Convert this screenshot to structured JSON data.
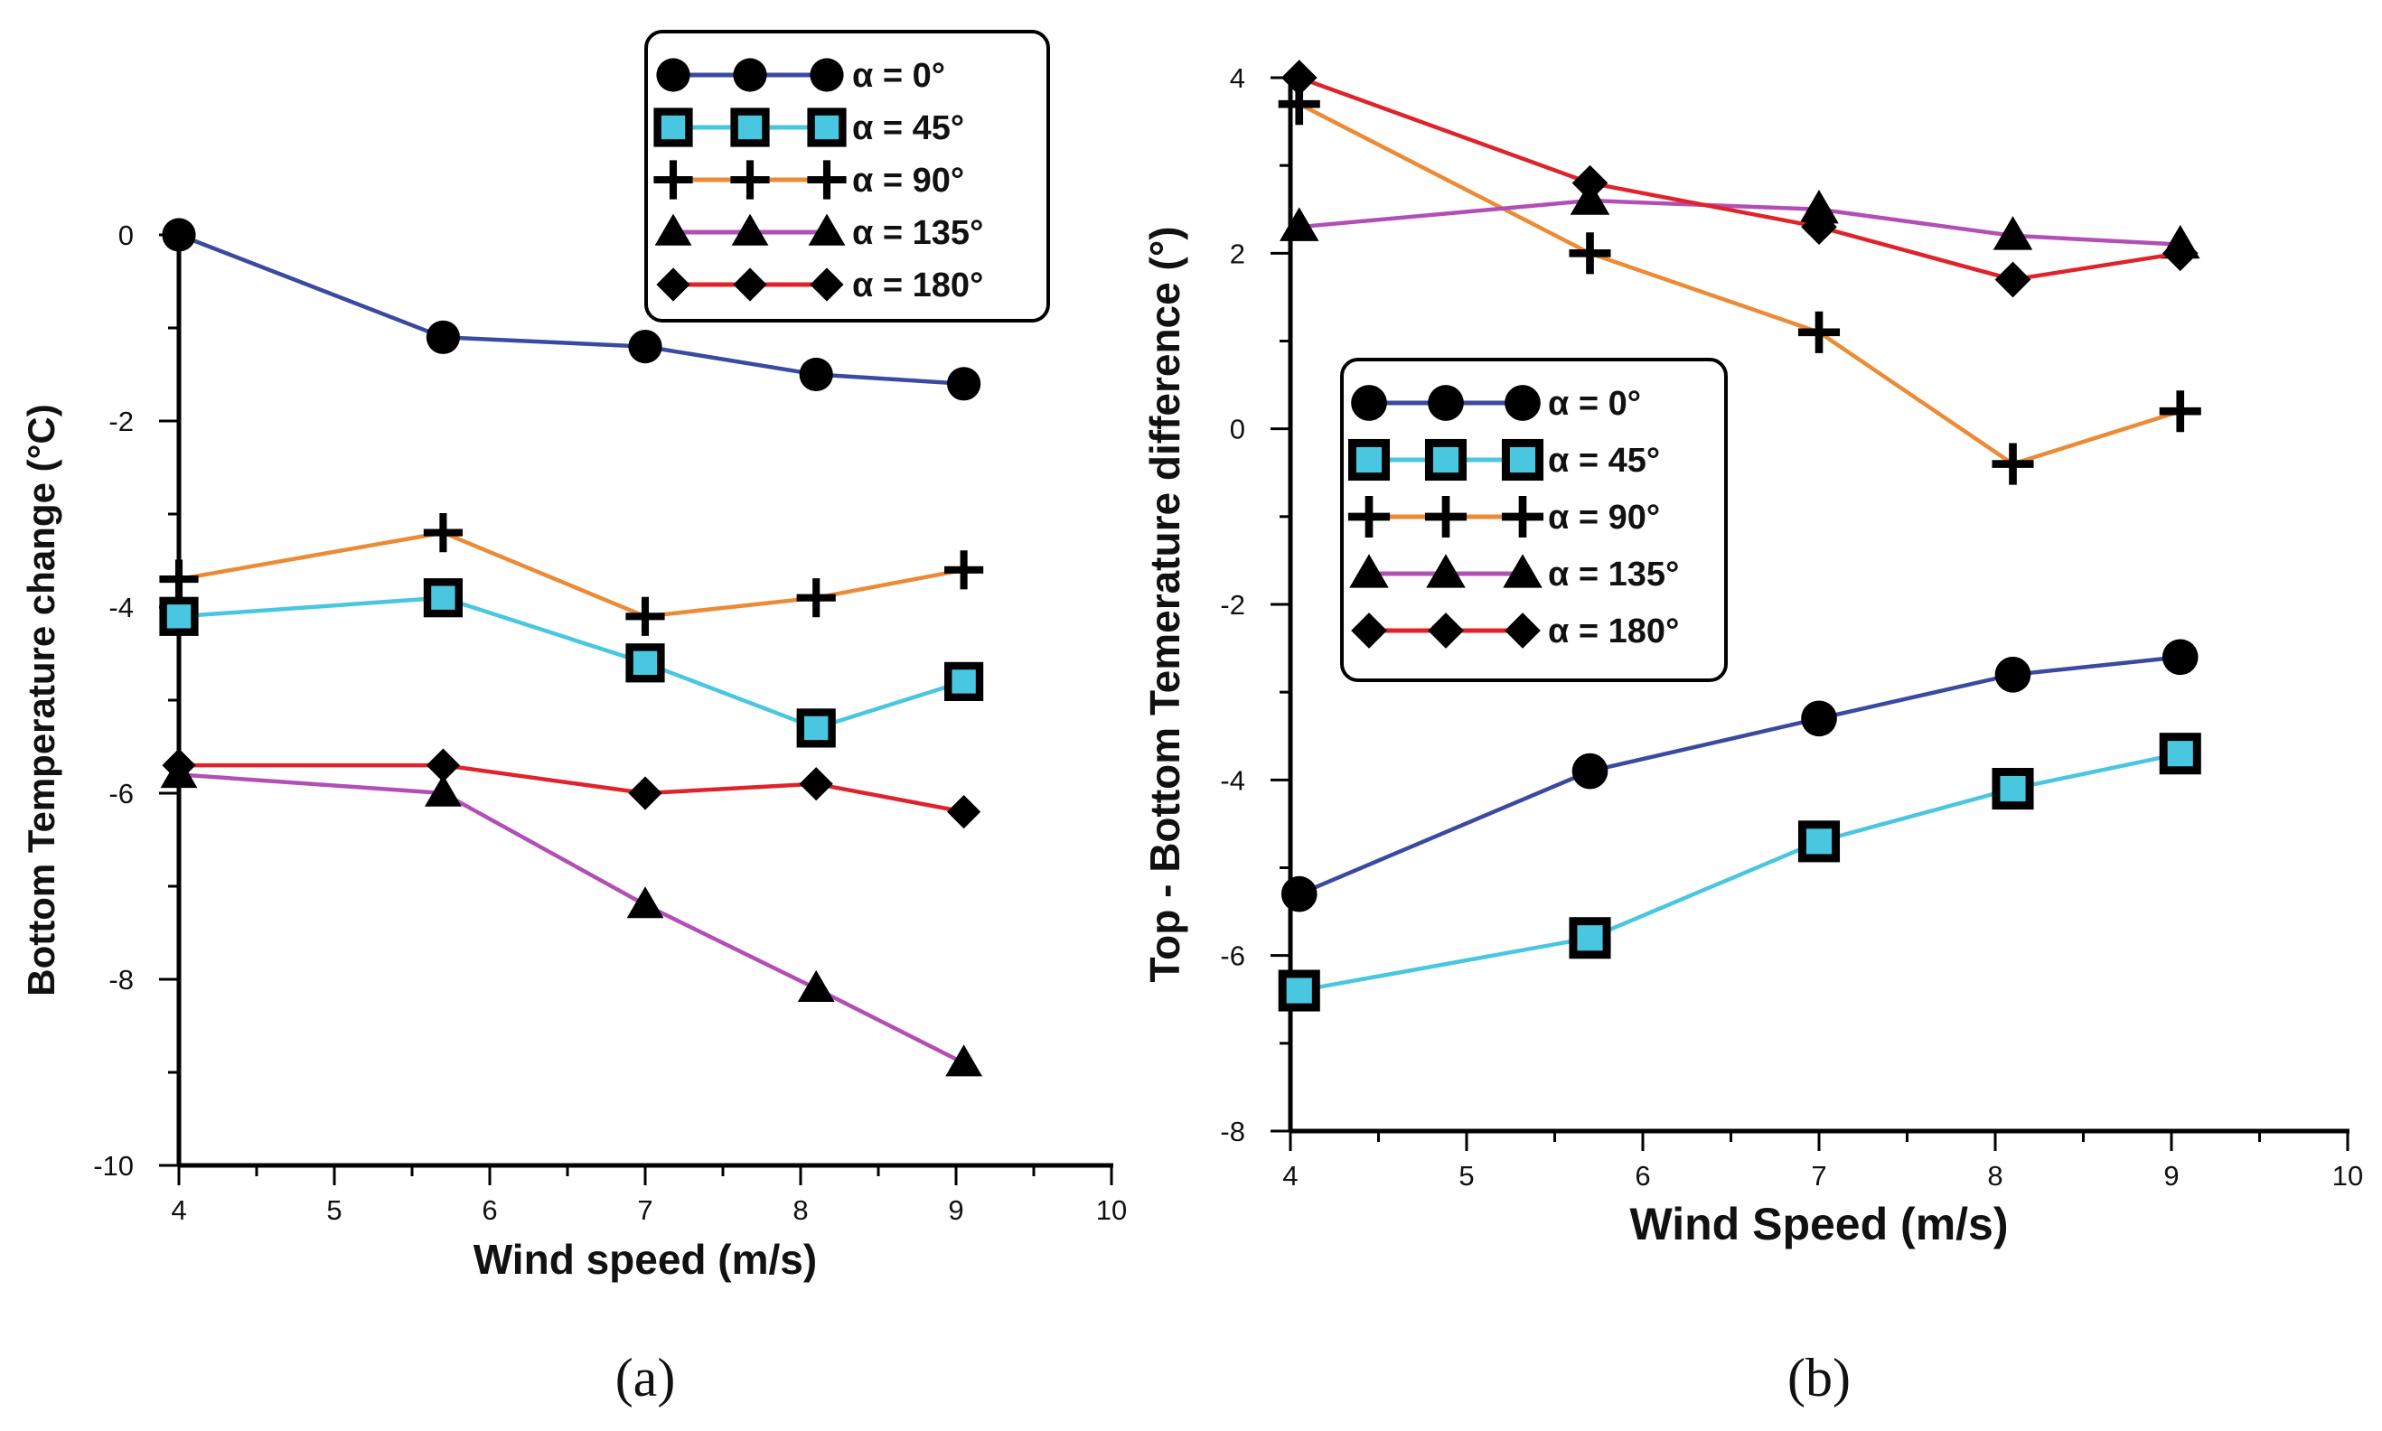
{
  "chart_data": [
    {
      "panel_label": "(a)",
      "type": "line",
      "xlabel": "Wind speed (m/s)",
      "ylabel": "Bottom Temperature change (°C)",
      "xlim": [
        4,
        10
      ],
      "ylim": [
        -10,
        0
      ],
      "x_ticks": [
        "4",
        "5",
        "6",
        "7",
        "8",
        "9",
        "10"
      ],
      "y_ticks": [
        "0",
        "-2",
        "-4",
        "-6",
        "-8",
        "-10"
      ],
      "grid": false,
      "legend_position": "top-right",
      "series": [
        {
          "name": "α = 0°",
          "marker": "circle",
          "color": "#3a4aa0",
          "x": [
            4,
            5.7,
            7,
            8.1,
            9.05
          ],
          "y": [
            0,
            -1.1,
            -1.2,
            -1.5,
            -1.6
          ]
        },
        {
          "name": "α = 45°",
          "marker": "square",
          "color": "#49c6e0",
          "x": [
            4,
            5.7,
            7,
            8.1,
            9.05
          ],
          "y": [
            -4.1,
            -3.9,
            -4.6,
            -5.3,
            -4.8
          ]
        },
        {
          "name": "α = 90°",
          "marker": "plus",
          "color": "#ec8a35",
          "x": [
            4,
            5.7,
            7,
            8.1,
            9.05
          ],
          "y": [
            -3.7,
            -3.2,
            -4.1,
            -3.9,
            -3.6
          ]
        },
        {
          "name": "α = 135°",
          "marker": "triangle",
          "color": "#b24fb6",
          "x": [
            4,
            5.7,
            7,
            8.1,
            9.05
          ],
          "y": [
            -5.8,
            -6.0,
            -7.2,
            -8.1,
            -8.9
          ]
        },
        {
          "name": "α = 180°",
          "marker": "diamond",
          "color": "#e0232b",
          "x": [
            4,
            5.7,
            7,
            8.1,
            9.05
          ],
          "y": [
            -5.7,
            -5.7,
            -6.0,
            -5.9,
            -6.2
          ]
        }
      ]
    },
    {
      "panel_label": "(b)",
      "type": "line",
      "xlabel": "Wind Speed (m/s)",
      "ylabel": "Top - Bottom Temerature difference (°)",
      "xlim": [
        4,
        10
      ],
      "ylim": [
        -8,
        4
      ],
      "x_ticks": [
        "4",
        "5",
        "6",
        "7",
        "8",
        "9",
        "10"
      ],
      "y_ticks": [
        "4",
        "2",
        "0",
        "-2",
        "-4",
        "-6",
        "-8"
      ],
      "grid": false,
      "legend_position": "center-left",
      "series": [
        {
          "name": "α = 0°",
          "marker": "circle",
          "color": "#3a4aa0",
          "x": [
            4.05,
            5.7,
            7,
            8.1,
            9.05
          ],
          "y": [
            -5.3,
            -3.9,
            -3.3,
            -2.8,
            -2.6
          ]
        },
        {
          "name": "α = 45°",
          "marker": "square",
          "color": "#49c6e0",
          "x": [
            4.05,
            5.7,
            7,
            8.1,
            9.05
          ],
          "y": [
            -6.4,
            -5.8,
            -4.7,
            -4.1,
            -3.7
          ]
        },
        {
          "name": "α = 90°",
          "marker": "plus",
          "color": "#ec8a35",
          "x": [
            4.05,
            5.7,
            7,
            8.1,
            9.05
          ],
          "y": [
            3.7,
            2.0,
            1.1,
            -0.4,
            0.2
          ]
        },
        {
          "name": "α = 135°",
          "marker": "triangle",
          "color": "#b24fb6",
          "x": [
            4.05,
            5.7,
            7,
            8.1,
            9.05
          ],
          "y": [
            2.3,
            2.6,
            2.5,
            2.2,
            2.1
          ]
        },
        {
          "name": "α = 180°",
          "marker": "diamond",
          "color": "#e0232b",
          "x": [
            4.05,
            5.7,
            7,
            8.1,
            9.05
          ],
          "y": [
            4.0,
            2.8,
            2.3,
            1.7,
            2.0
          ]
        }
      ]
    }
  ]
}
